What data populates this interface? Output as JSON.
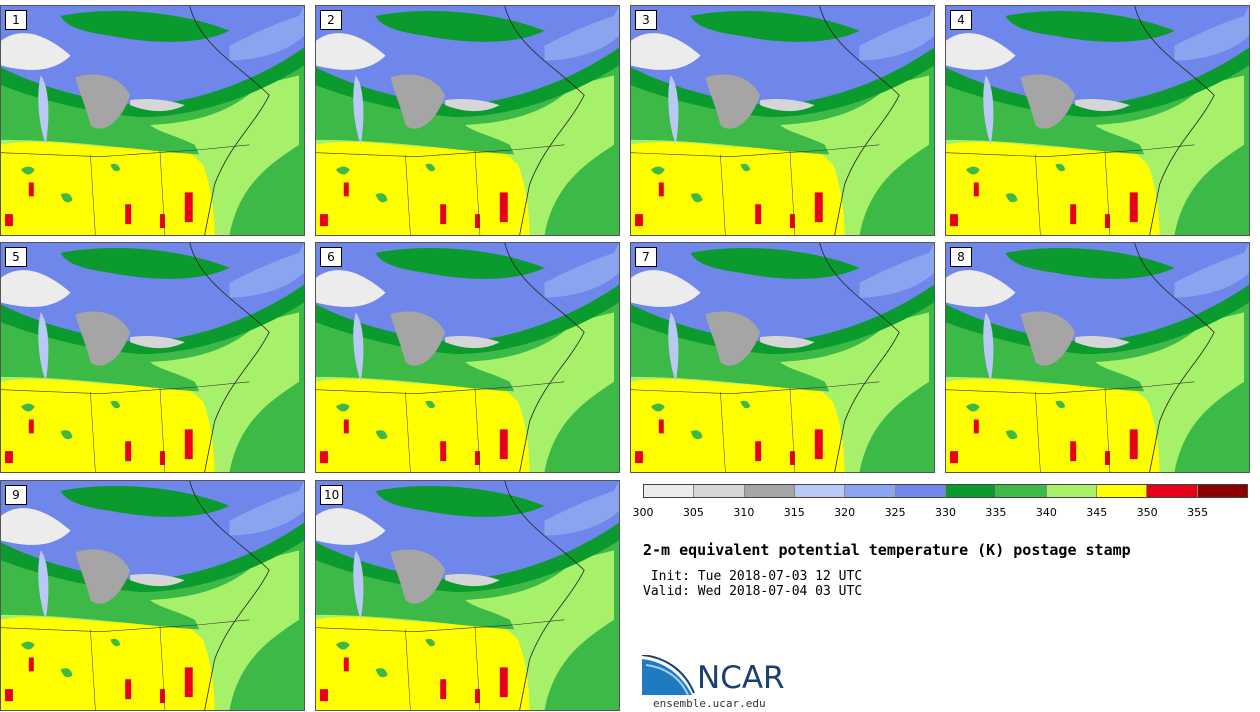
{
  "panels": [
    {
      "label": "1"
    },
    {
      "label": "2"
    },
    {
      "label": "3"
    },
    {
      "label": "4"
    },
    {
      "label": "5"
    },
    {
      "label": "6"
    },
    {
      "label": "7"
    },
    {
      "label": "8"
    },
    {
      "label": "9"
    },
    {
      "label": "10"
    }
  ],
  "colorbar": {
    "colors": [
      "#ececec",
      "#d6d6d6",
      "#a5a5a5",
      "#b9c9f6",
      "#8ba4f0",
      "#6f86ea",
      "#0a9a2d",
      "#3cb946",
      "#a6f06a",
      "#ffff00",
      "#e6001a",
      "#8b0000"
    ],
    "tick_labels": [
      "300",
      "305",
      "310",
      "315",
      "320",
      "325",
      "330",
      "335",
      "340",
      "345",
      "350",
      "355"
    ]
  },
  "title": "2-m equivalent potential temperature (K) postage stamp",
  "init_line": " Init: Tue 2018-07-03 12 UTC",
  "valid_line": "Valid: Wed 2018-07-04 03 UTC",
  "logo": {
    "name": "NCAR",
    "url": "ensemble.ucar.edu"
  }
}
